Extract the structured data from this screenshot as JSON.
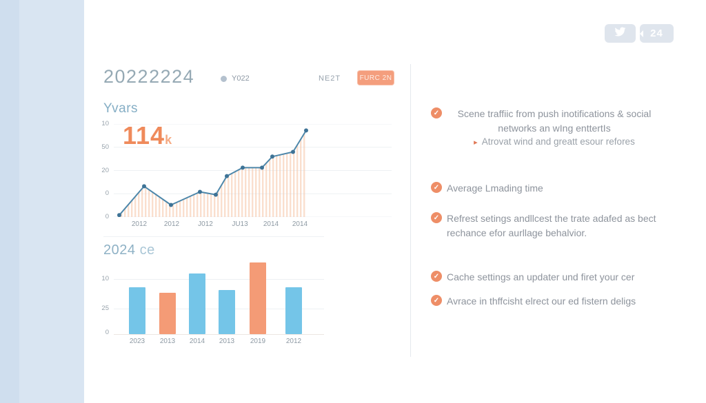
{
  "topbar": {
    "share_count": "24"
  },
  "header": {
    "title": "20222224",
    "legend_label": "Y022",
    "next_label": "NE2T",
    "button_label": "FURC 2N"
  },
  "line_chart": {
    "title": "Yvars",
    "big_value": "114",
    "big_value_suffix": "k"
  },
  "bar_chart": {
    "title": "2024",
    "title_suffix": "ce"
  },
  "right_panel": {
    "items": [
      {
        "text": "Scene traffiic from push inotifications & social networks an wIng enttertIs",
        "align": "center",
        "sub": "Atrovat  wind and greatt esour refores"
      },
      {
        "text": "Average Lmading time",
        "align": "left"
      },
      {
        "text": "Refrest setings andllcest the trate adafed as bect rechance efor aurllage behalvior.",
        "align": "left"
      },
      {
        "text": "Cache settings an updater und firet your cer",
        "align": "left"
      },
      {
        "text": "Avrace in thffcisht elrect our ed fistern deligs",
        "align": "left"
      }
    ]
  },
  "chart_data": [
    {
      "type": "area",
      "title": "Yvars",
      "annotation": "114k",
      "y_tick_labels": [
        "10",
        "50",
        "20",
        "0",
        "0"
      ],
      "x_tick_labels": [
        "2012",
        "2012",
        "J012",
        "JU13",
        "2014",
        "2014"
      ],
      "points": [
        {
          "x": 8,
          "y": 2
        },
        {
          "x": 44,
          "y": 33
        },
        {
          "x": 83,
          "y": 13
        },
        {
          "x": 125,
          "y": 27
        },
        {
          "x": 148,
          "y": 24
        },
        {
          "x": 164,
          "y": 44
        },
        {
          "x": 187,
          "y": 53
        },
        {
          "x": 215,
          "y": 53
        },
        {
          "x": 230,
          "y": 65
        },
        {
          "x": 260,
          "y": 70
        },
        {
          "x": 279,
          "y": 93
        }
      ],
      "y_range": [
        0,
        100
      ],
      "grid": "horizontal",
      "line_color": "#4d87aa",
      "marker_color": "#3e7396",
      "fill_stripe_color": "#f6c9ae"
    },
    {
      "type": "bar",
      "title": "2024 ce",
      "categories": [
        "2023",
        "2013",
        "2014",
        "2013",
        "2019",
        "2012"
      ],
      "values": [
        68,
        60,
        88,
        64,
        104,
        68
      ],
      "ylim": [
        0,
        110
      ],
      "y_tick_labels": [
        "10",
        "25",
        "0"
      ],
      "grid": "horizontal",
      "bar_colors": [
        "#74c5e8",
        "#f49b76",
        "#74c5e8",
        "#74c5e8",
        "#f49b76",
        "#74c5e8"
      ]
    }
  ],
  "colors": {
    "accent_orange": "#f49b76",
    "accent_blue": "#74c5e8",
    "line_blue": "#4d87aa",
    "sidebar_blue": "#d9e5f2",
    "title_gray_blue": "#95a9b4",
    "check_icon": "#ee8e67",
    "badge_bg": "#dfe5ed"
  }
}
